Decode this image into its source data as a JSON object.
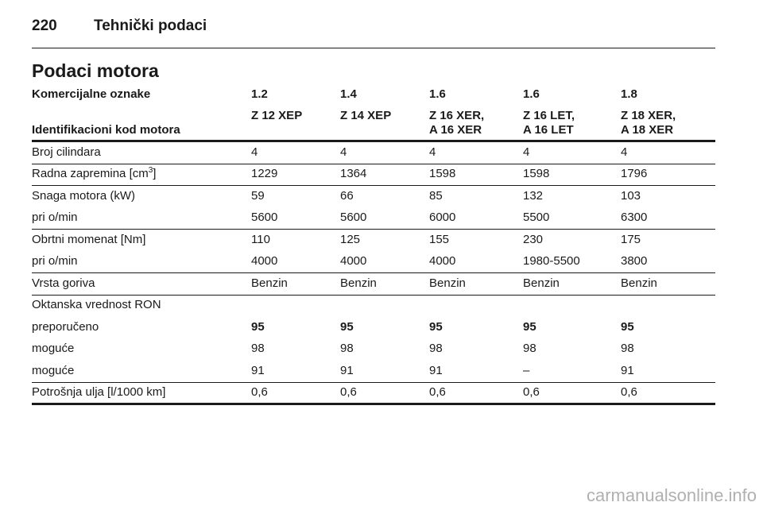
{
  "header": {
    "page_number": "220",
    "title": "Tehnički podaci"
  },
  "section_title": "Podaci motora",
  "table": {
    "head": [
      {
        "label": "Komercijalne oznake",
        "cells": [
          [
            "1.2"
          ],
          [
            "1.4"
          ],
          [
            "1.6"
          ],
          [
            "1.6"
          ],
          [
            "1.8"
          ]
        ]
      },
      {
        "label": "Identifikacioni kod motora",
        "cells": [
          [
            "Z 12 XEP"
          ],
          [
            "Z 14 XEP"
          ],
          [
            "Z 16 XER,",
            "A 16 XER"
          ],
          [
            "Z 16 LET,",
            "A 16 LET"
          ],
          [
            "Z 18 XER,",
            "A 18 XER"
          ]
        ]
      }
    ],
    "groups": [
      [
        {
          "label": "Broj cilindara",
          "values": [
            "4",
            "4",
            "4",
            "4",
            "4"
          ]
        }
      ],
      [
        {
          "label": [
            "Radna zapremina [cm",
            "3",
            "]"
          ],
          "values": [
            "1229",
            "1364",
            "1598",
            "1598",
            "1796"
          ]
        }
      ],
      [
        {
          "label": "Snaga motora (kW)",
          "values": [
            "59",
            "66",
            "85",
            "132",
            "103"
          ]
        },
        {
          "label": "pri o/min",
          "values": [
            "5600",
            "5600",
            "6000",
            "5500",
            "6300"
          ]
        }
      ],
      [
        {
          "label": "Obrtni momenat [Nm]",
          "values": [
            "110",
            "125",
            "155",
            "230",
            "175"
          ]
        },
        {
          "label": "pri o/min",
          "values": [
            "4000",
            "4000",
            "4000",
            "1980-5500",
            "3800"
          ]
        }
      ],
      [
        {
          "label": "Vrsta goriva",
          "values": [
            "Benzin",
            "Benzin",
            "Benzin",
            "Benzin",
            "Benzin"
          ]
        }
      ],
      [
        {
          "label": "Oktanska vrednost RON",
          "values": []
        },
        {
          "label": "preporučeno",
          "values": [
            "95",
            "95",
            "95",
            "95",
            "95"
          ],
          "bold": true
        },
        {
          "label": "moguće",
          "values": [
            "98",
            "98",
            "98",
            "98",
            "98"
          ]
        },
        {
          "label": "moguće",
          "values": [
            "91",
            "91",
            "91",
            "–",
            "91"
          ]
        }
      ],
      [
        {
          "label": "Potrošnja ulja [l/1000 km]",
          "values": [
            "0,6",
            "0,6",
            "0,6",
            "0,6",
            "0,6"
          ]
        }
      ]
    ]
  },
  "watermark": "carmanualsonline.info"
}
